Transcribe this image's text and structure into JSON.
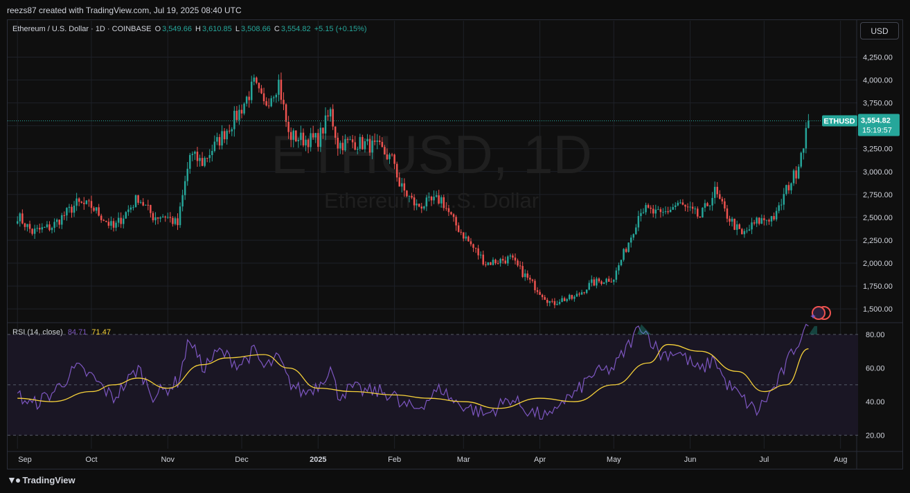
{
  "header": {
    "credit": "reezs87 created with TradingView.com, Jul 19, 2025 08:40 UTC"
  },
  "legend": {
    "symbol": "Ethereum / U.S. Dollar · 1D · COINBASE",
    "o_label": "O",
    "o_value": "3,549.66",
    "h_label": "H",
    "h_value": "3,610.85",
    "l_label": "L",
    "l_value": "3,508.66",
    "c_label": "C",
    "c_value": "3,554.82",
    "change": "+5.15 (+0.15%)"
  },
  "watermark": {
    "title": "ETHUSD, 1D",
    "subtitle": "Ethereum / U.S. Dollar"
  },
  "currency_button": "USD",
  "price_tag": {
    "symbol": "ETHUSD",
    "price": "3,554.82",
    "countdown": "15:19:57"
  },
  "rsi": {
    "label": "RSI (14, close)",
    "rsi_value": "84.71",
    "ma_value": "71.47"
  },
  "footer": {
    "brand": "TradingView"
  },
  "colors": {
    "up": "#26a69a",
    "down": "#ef5350",
    "rsi_line": "#7e57c2",
    "rsi_ma": "#f7d23a",
    "background": "#0f0f0f",
    "grid": "#1e2128"
  },
  "chart_data": [
    {
      "type": "candlestick",
      "title": "Ethereum / U.S. Dollar · 1D · COINBASE",
      "y_ticks": [
        "4,250.00",
        "4,000.00",
        "3,750.00",
        "3,500.00",
        "3,250.00",
        "3,000.00",
        "2,750.00",
        "2,500.00",
        "2,250.00",
        "2,000.00",
        "1,750.00",
        "1,500.00"
      ],
      "y_tick_values": [
        4250,
        4000,
        3750,
        3500,
        3250,
        3000,
        2750,
        2500,
        2250,
        2000,
        1750,
        1500
      ],
      "x_ticks": [
        "Sep",
        "Oct",
        "Nov",
        "Dec",
        "2025",
        "Feb",
        "Mar",
        "Apr",
        "May",
        "Jun",
        "Jul",
        "Aug"
      ],
      "ylim": [
        1380,
        4420
      ],
      "grid": true,
      "series_anchors": {
        "dates": [
          "2024-09-01",
          "2024-09-07",
          "2024-09-15",
          "2024-09-25",
          "2024-10-01",
          "2024-10-10",
          "2024-10-20",
          "2024-10-26",
          "2024-10-31",
          "2024-11-05",
          "2024-11-10",
          "2024-11-15",
          "2024-11-22",
          "2024-11-30",
          "2024-12-06",
          "2024-12-10",
          "2024-12-16",
          "2024-12-20",
          "2024-12-26",
          "2025-01-01",
          "2025-01-06",
          "2025-01-09",
          "2025-01-15",
          "2025-01-20",
          "2025-01-26",
          "2025-02-01",
          "2025-02-03",
          "2025-02-10",
          "2025-02-20",
          "2025-02-25",
          "2025-03-04",
          "2025-03-10",
          "2025-03-20",
          "2025-03-28",
          "2025-04-06",
          "2025-04-09",
          "2025-04-15",
          "2025-04-22",
          "2025-05-01",
          "2025-05-08",
          "2025-05-12",
          "2025-05-20",
          "2025-05-27",
          "2025-06-05",
          "2025-06-11",
          "2025-06-15",
          "2025-06-22",
          "2025-06-28",
          "2025-07-06",
          "2025-07-10",
          "2025-07-14",
          "2025-07-19"
        ],
        "close": [
          2520,
          2340,
          2400,
          2650,
          2620,
          2380,
          2720,
          2510,
          2520,
          2420,
          3180,
          3100,
          3350,
          3650,
          3950,
          3720,
          3980,
          3400,
          3350,
          3350,
          3650,
          3300,
          3320,
          3300,
          3250,
          3100,
          2850,
          2620,
          2700,
          2450,
          2200,
          2000,
          2050,
          1800,
          1550,
          1600,
          1620,
          1780,
          1840,
          2300,
          2600,
          2520,
          2650,
          2500,
          2780,
          2560,
          2300,
          2450,
          2520,
          2800,
          3000,
          3554
        ]
      }
    },
    {
      "type": "line",
      "title": "RSI (14, close)",
      "y_ticks": [
        "80.00",
        "60.00",
        "40.00",
        "20.00"
      ],
      "y_tick_values": [
        80,
        60,
        40,
        20
      ],
      "ylim": [
        12,
        87
      ],
      "bands": [
        80,
        50,
        20
      ],
      "series": [
        {
          "name": "RSI",
          "x": [
            "2024-09-01",
            "2024-09-07",
            "2024-09-15",
            "2024-09-25",
            "2024-10-01",
            "2024-10-10",
            "2024-10-20",
            "2024-10-26",
            "2024-10-31",
            "2024-11-05",
            "2024-11-10",
            "2024-11-15",
            "2024-11-22",
            "2024-11-30",
            "2024-12-06",
            "2024-12-10",
            "2024-12-16",
            "2024-12-20",
            "2024-12-26",
            "2025-01-01",
            "2025-01-06",
            "2025-01-09",
            "2025-01-15",
            "2025-01-20",
            "2025-01-26",
            "2025-02-01",
            "2025-02-03",
            "2025-02-10",
            "2025-02-20",
            "2025-02-25",
            "2025-03-04",
            "2025-03-10",
            "2025-03-20",
            "2025-03-28",
            "2025-04-06",
            "2025-04-09",
            "2025-04-15",
            "2025-04-22",
            "2025-05-01",
            "2025-05-08",
            "2025-05-12",
            "2025-05-20",
            "2025-05-27",
            "2025-06-05",
            "2025-06-11",
            "2025-06-15",
            "2025-06-22",
            "2025-06-28",
            "2025-07-06",
            "2025-07-10",
            "2025-07-14",
            "2025-07-19"
          ],
          "values": [
            44,
            38,
            45,
            60,
            55,
            42,
            60,
            44,
            47,
            52,
            78,
            60,
            70,
            62,
            70,
            60,
            66,
            52,
            45,
            50,
            60,
            44,
            48,
            46,
            46,
            44,
            38,
            36,
            48,
            40,
            36,
            32,
            42,
            34,
            30,
            40,
            44,
            56,
            60,
            76,
            86,
            68,
            70,
            58,
            66,
            52,
            42,
            34,
            50,
            62,
            74,
            85
          ]
        },
        {
          "name": "RSI-based MA",
          "x": [
            "2024-09-01",
            "2024-09-15",
            "2024-10-01",
            "2024-10-10",
            "2024-10-20",
            "2024-11-01",
            "2024-11-15",
            "2024-11-25",
            "2024-12-10",
            "2024-12-20",
            "2025-01-01",
            "2025-01-15",
            "2025-02-01",
            "2025-02-15",
            "2025-03-01",
            "2025-03-15",
            "2025-04-01",
            "2025-04-15",
            "2025-05-01",
            "2025-05-15",
            "2025-05-23",
            "2025-06-05",
            "2025-06-20",
            "2025-07-01",
            "2025-07-10",
            "2025-07-19"
          ],
          "values": [
            42,
            40,
            46,
            50,
            54,
            48,
            62,
            66,
            68,
            60,
            48,
            46,
            44,
            42,
            40,
            36,
            42,
            40,
            50,
            63,
            74,
            70,
            58,
            46,
            50,
            71.47
          ]
        }
      ]
    }
  ]
}
